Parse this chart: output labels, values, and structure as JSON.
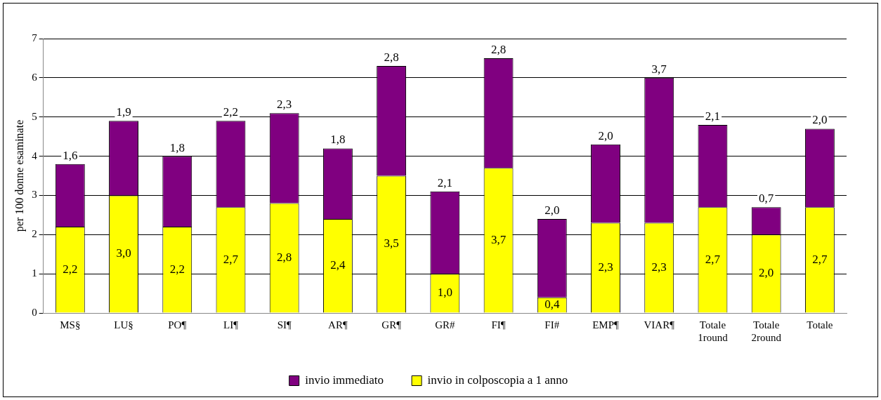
{
  "chart_data": {
    "type": "bar",
    "stacked": true,
    "ylabel": "per 100 donne esaminate",
    "categories": [
      "MS§",
      "LU§",
      "PO¶",
      "LI¶",
      "SI¶",
      "AR¶",
      "GR¶",
      "GR#",
      "FI¶",
      "FI#",
      "EMP¶",
      "VIAR¶",
      "Totale 1round",
      "Totale 2round",
      "Totale"
    ],
    "series": [
      {
        "name": "invio in colposcopia a 1 anno",
        "color": "#ffff00",
        "values": [
          2.2,
          3.0,
          2.2,
          2.7,
          2.8,
          2.4,
          3.5,
          1.0,
          3.7,
          0.4,
          2.3,
          2.3,
          2.7,
          2.0,
          2.7
        ],
        "value_labels": [
          "2,2",
          "3,0",
          "2,2",
          "2,7",
          "2,8",
          "2,4",
          "3,5",
          "1,0",
          "3,7",
          "0,4",
          "2,3",
          "2,3",
          "2,7",
          "2,0",
          "2,7"
        ]
      },
      {
        "name": "invio immediato",
        "color": "#800080",
        "values": [
          1.6,
          1.9,
          1.8,
          2.2,
          2.3,
          1.8,
          2.8,
          2.1,
          2.8,
          2.0,
          2.0,
          3.7,
          2.1,
          0.7,
          2.0
        ],
        "value_labels": [
          "1,6",
          "1,9",
          "1,8",
          "2,2",
          "2,3",
          "1,8",
          "2,8",
          "2,1",
          "2,8",
          "2,0",
          "2,0",
          "3,7",
          "2,1",
          "0,7",
          "2,0"
        ]
      }
    ],
    "ylim": [
      0,
      7
    ],
    "yticks": [
      0,
      1,
      2,
      3,
      4,
      5,
      6,
      7
    ],
    "grid": "y",
    "legend": "bottom"
  }
}
